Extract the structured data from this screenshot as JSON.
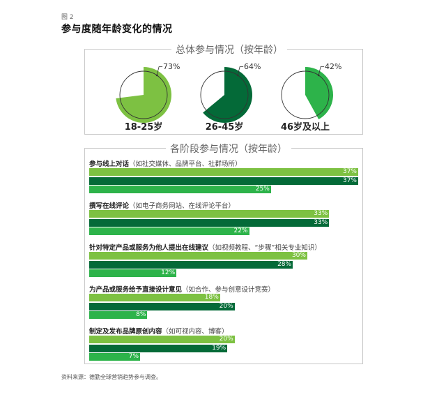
{
  "figure": {
    "label": "图 2",
    "title": "参与度随年龄变化的情况",
    "source": "资料来源：德勤全球营销趋势参与调查。"
  },
  "colors": {
    "age_18_25": "#7dc142",
    "age_26_45": "#046a38",
    "age_46_plus": "#2db34a",
    "border": "#c8c8c8"
  },
  "overall": {
    "title": "总体参与情况（按年龄）",
    "pies": [
      {
        "group": "18-25岁",
        "value": 73,
        "label": "73%"
      },
      {
        "group": "26-45岁",
        "value": 64,
        "label": "64%"
      },
      {
        "group": "46岁及以上",
        "value": 42,
        "label": "42%"
      }
    ]
  },
  "stage": {
    "title": "各阶段参与情况（按年龄）",
    "categories": [
      {
        "name": "参与线上对话",
        "detail": "（如社交媒体、品牌平台、社群场所）",
        "values": [
          37,
          37,
          25
        ],
        "labels": [
          "37%",
          "37%",
          "25%"
        ]
      },
      {
        "name": "撰写在线评论",
        "detail": "（如电子商务网站、在线评论平台）",
        "values": [
          33,
          33,
          22
        ],
        "labels": [
          "33%",
          "33%",
          "22%"
        ]
      },
      {
        "name": "针对特定产品或服务为他人提出在线建议",
        "detail": "（如视频教程、“步骤”相关专业知识）",
        "values": [
          30,
          28,
          12
        ],
        "labels": [
          "30%",
          "28%",
          "12%"
        ]
      },
      {
        "name": "为产品或服务给予直接设计意见",
        "detail": "（如合作、参与创意设计竞赛）",
        "values": [
          18,
          20,
          8
        ],
        "labels": [
          "18%",
          "20%",
          "8%"
        ]
      },
      {
        "name": "制定及发布品牌原创内容",
        "detail": "（如可视内容、博客）",
        "values": [
          20,
          19,
          7
        ],
        "labels": [
          "20%",
          "19%",
          "7%"
        ]
      }
    ]
  },
  "chart_data": [
    {
      "type": "pie",
      "title": "总体参与情况（按年龄）",
      "categories": [
        "18-25岁",
        "26-45岁",
        "46岁及以上"
      ],
      "values": [
        73,
        64,
        42
      ],
      "unit": "%"
    },
    {
      "type": "bar",
      "orientation": "horizontal",
      "title": "各阶段参与情况（按年龄）",
      "categories": [
        "参与线上对话（如社交媒体、品牌平台、社群场所）",
        "撰写在线评论（如电子商务网站、在线评论平台）",
        "针对特定产品或服务为他人提出在线建议（如视频教程、“步骤”相关专业知识）",
        "为产品或服务给予直接设计意见（如合作、参与创意设计竞赛）",
        "制定及发布品牌原创内容（如可视内容、博客）"
      ],
      "series": [
        {
          "name": "18-25岁",
          "color": "#7dc142",
          "values": [
            37,
            33,
            30,
            18,
            20
          ]
        },
        {
          "name": "26-45岁",
          "color": "#046a38",
          "values": [
            37,
            33,
            28,
            20,
            19
          ]
        },
        {
          "name": "46岁及以上",
          "color": "#2db34a",
          "values": [
            25,
            22,
            12,
            8,
            7
          ]
        }
      ],
      "unit": "%",
      "grid": false,
      "legend": "none (colors match pie groups)"
    }
  ]
}
